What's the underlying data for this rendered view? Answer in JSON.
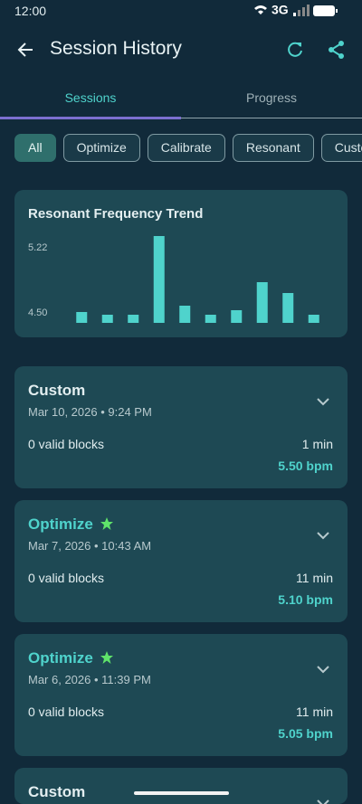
{
  "status": {
    "time": "12:00",
    "network": "3G"
  },
  "header": {
    "title": "Session History"
  },
  "tabs": [
    "Sessions",
    "Progress"
  ],
  "filters": [
    "All",
    "Optimize",
    "Calibrate",
    "Resonant",
    "Custom"
  ],
  "chart_data": {
    "type": "bar",
    "title": "Resonant Frequency Trend",
    "categories": [
      null,
      null,
      null,
      null,
      null,
      null,
      null,
      null,
      null,
      null
    ],
    "values": [
      4.51,
      4.48,
      4.48,
      5.35,
      4.58,
      4.48,
      4.53,
      4.84,
      4.72,
      4.48
    ],
    "color": "#4fd3cc",
    "ylim": [
      4.39,
      5.39
    ],
    "yticks": [
      {
        "value": 4.5,
        "label": "4.50"
      },
      5.22
    ],
    "grid": false
  },
  "sessions": [
    {
      "type": "Custom",
      "date": "Mar 10, 2026 • 9:24 PM",
      "blocks": "0 valid blocks",
      "duration": "1 min",
      "bpm": "5.50 bpm",
      "starred": false
    },
    {
      "type": "Optimize",
      "date": "Mar 7, 2026 • 10:43 AM",
      "blocks": "0 valid blocks",
      "duration": "11 min",
      "bpm": "5.10 bpm",
      "starred": true
    },
    {
      "type": "Optimize",
      "date": "Mar 6, 2026 • 11:39 PM",
      "blocks": "0 valid blocks",
      "duration": "11 min",
      "bpm": "5.05 bpm",
      "starred": true
    },
    {
      "type": "Custom"
    }
  ]
}
